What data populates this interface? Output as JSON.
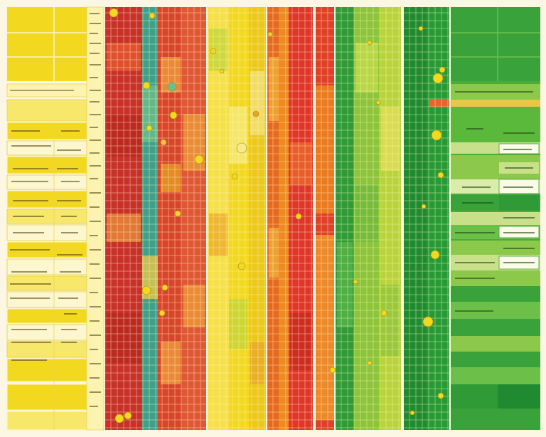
{
  "palette": {
    "background": "#fbf7e4",
    "yellow": "#f2d81e",
    "yellow_light": "#f7eb8a",
    "red": "#d8352a",
    "red_dark": "#b8281f",
    "orange": "#ee8a1f",
    "green": "#3aa23a",
    "green_dark": "#1f8a2f",
    "green_light": "#6cc04a",
    "teal": "#3fa089",
    "grid_line": "#fff6c8"
  },
  "column_bands": [
    {
      "name": "left-yellow-table",
      "color": "yellow"
    },
    {
      "name": "label-strip",
      "color": "yellow_light"
    },
    {
      "name": "red-heat-band",
      "color": "red"
    },
    {
      "name": "yellow-heat-band",
      "color": "yellow"
    },
    {
      "name": "orange-heat-band",
      "color": "orange"
    },
    {
      "name": "red-thin-band",
      "color": "red"
    },
    {
      "name": "green-heat-band",
      "color": "green"
    },
    {
      "name": "dark-green-band",
      "color": "green_dark"
    },
    {
      "name": "right-green-table",
      "color": "green_light"
    }
  ]
}
